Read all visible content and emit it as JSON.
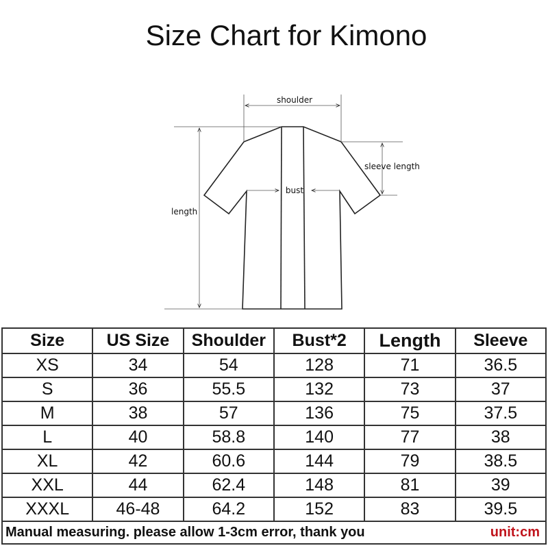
{
  "title": "Size Chart for Kimono",
  "diagram": {
    "labels": {
      "shoulder": "shoulder",
      "sleeve": "sleeve length",
      "bust": "bust",
      "length": "length"
    }
  },
  "table": {
    "headers": [
      "Size",
      "US Size",
      "Shoulder",
      "Bust*2",
      "Length",
      "Sleeve"
    ],
    "rows": [
      [
        "XS",
        "34",
        "54",
        "128",
        "71",
        "36.5"
      ],
      [
        "S",
        "36",
        "55.5",
        "132",
        "73",
        "37"
      ],
      [
        "M",
        "38",
        "57",
        "136",
        "75",
        "37.5"
      ],
      [
        "L",
        "40",
        "58.8",
        "140",
        "77",
        "38"
      ],
      [
        "XL",
        "42",
        "60.6",
        "144",
        "79",
        "38.5"
      ],
      [
        "XXL",
        "44",
        "62.4",
        "148",
        "81",
        "39"
      ],
      [
        "XXXL",
        "46-48",
        "64.2",
        "152",
        "83",
        "39.5"
      ]
    ],
    "note": "Manual measuring. please allow 1-3cm error, thank you",
    "unit": "unit:cm",
    "unit_color": "#c0141c"
  }
}
